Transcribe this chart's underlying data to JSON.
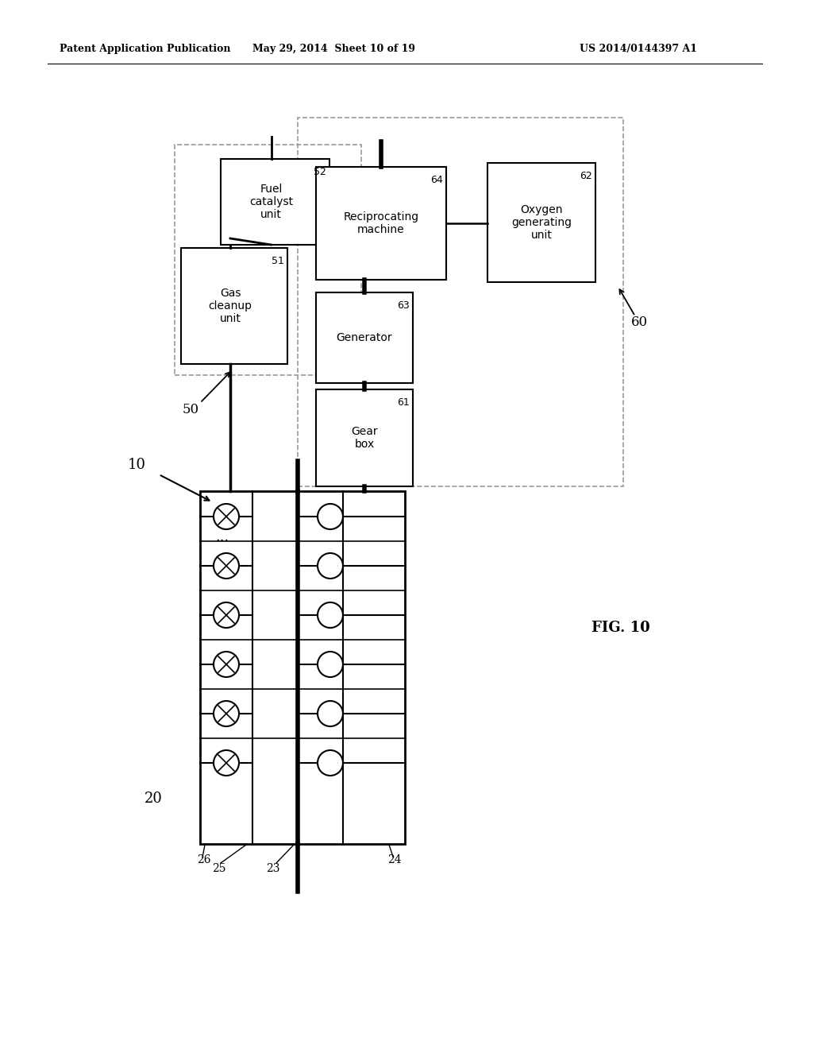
{
  "header_left": "Patent Application Publication",
  "header_mid": "May 29, 2014  Sheet 10 of 19",
  "header_right": "US 2014/0144397 A1",
  "fig_label": "FIG. 10",
  "label_10": "10",
  "label_20": "20",
  "label_50": "50",
  "label_60": "60",
  "label_23": "23",
  "label_24": "24",
  "label_25": "25",
  "label_26": "26",
  "box_fuel_catalyst": "Fuel\ncatalyst\nunit",
  "box_fuel_num": "52",
  "box_gas_cleanup": "Gas\ncleanup\nunit",
  "box_gas_num": "51",
  "box_reciprocating": "Reciprocating\nmachine",
  "box_recip_num": "64",
  "box_generator": "Generator",
  "box_gen_num": "63",
  "box_gearbox": "Gear\nbox",
  "box_gear_num": "61",
  "box_oxygen": "Oxygen\ngenerating\nunit",
  "box_oxy_num": "62",
  "background": "#ffffff",
  "box_color": "#ffffff",
  "box_edge": "#000000",
  "dashed_edge": "#888888",
  "line_color": "#000000",
  "thick_line": 4.0,
  "thin_line": 1.5
}
